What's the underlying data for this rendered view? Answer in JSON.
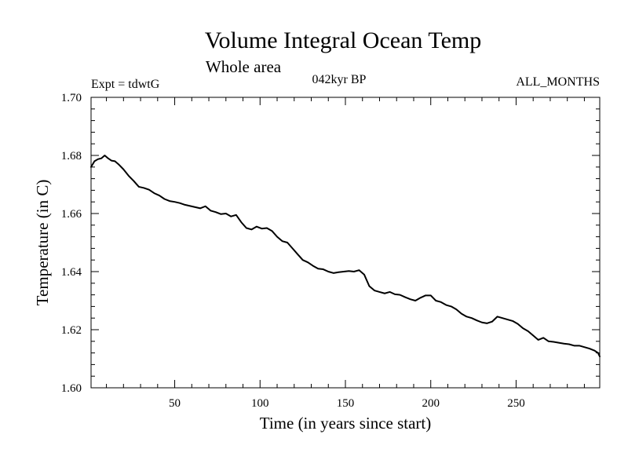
{
  "chart_data": {
    "type": "line",
    "title": "Volume Integral Ocean Temp",
    "subtitle": "Whole area",
    "annotation_left": "Expt = tdwtG",
    "annotation_center": "042kyr BP",
    "annotation_right": "ALL_MONTHS",
    "xlabel": "Time (in years since start)",
    "ylabel": "Temperature (in C)",
    "xlim": [
      1,
      299
    ],
    "ylim": [
      1.6,
      1.7
    ],
    "x_ticks": [
      50,
      100,
      150,
      200,
      250
    ],
    "x_tick_labels": [
      "50",
      "100",
      "150",
      "200",
      "250"
    ],
    "y_ticks": [
      1.6,
      1.62,
      1.64,
      1.66,
      1.68,
      1.7
    ],
    "y_tick_labels": [
      "1.60",
      "1.62",
      "1.64",
      "1.66",
      "1.68",
      "1.70"
    ],
    "grid": false,
    "series": [
      {
        "name": "Volume Integral Ocean Temp",
        "color": "#000000",
        "x": [
          1,
          3,
          5,
          7,
          9,
          11,
          13,
          15,
          17,
          20,
          23,
          26,
          29,
          32,
          35,
          38,
          41,
          44,
          47,
          50,
          53,
          56,
          59,
          62,
          65,
          68,
          71,
          74,
          77,
          80,
          83,
          86,
          89,
          92,
          95,
          98,
          101,
          104,
          107,
          110,
          113,
          116,
          119,
          122,
          125,
          128,
          131,
          134,
          137,
          140,
          143,
          146,
          149,
          152,
          155,
          158,
          161,
          164,
          167,
          170,
          173,
          176,
          179,
          182,
          185,
          188,
          191,
          194,
          197,
          200,
          203,
          206,
          209,
          212,
          215,
          218,
          221,
          224,
          227,
          230,
          233,
          236,
          239,
          242,
          245,
          248,
          251,
          254,
          257,
          260,
          263,
          266,
          269,
          272,
          275,
          278,
          281,
          284,
          287,
          290,
          293,
          296,
          298,
          299
        ],
        "values": [
          1.676,
          1.678,
          1.6787,
          1.679,
          1.68,
          1.679,
          1.6782,
          1.678,
          1.677,
          1.6752,
          1.673,
          1.6712,
          1.6692,
          1.6688,
          1.6682,
          1.667,
          1.6662,
          1.665,
          1.6643,
          1.664,
          1.6636,
          1.663,
          1.6626,
          1.6622,
          1.6618,
          1.6625,
          1.661,
          1.6605,
          1.6598,
          1.66,
          1.659,
          1.6595,
          1.657,
          1.655,
          1.6545,
          1.6555,
          1.6548,
          1.655,
          1.654,
          1.652,
          1.6505,
          1.65,
          1.648,
          1.646,
          1.644,
          1.6432,
          1.642,
          1.641,
          1.6408,
          1.64,
          1.6395,
          1.6398,
          1.64,
          1.6402,
          1.64,
          1.6405,
          1.639,
          1.635,
          1.6335,
          1.633,
          1.6325,
          1.633,
          1.6322,
          1.632,
          1.6312,
          1.6305,
          1.63,
          1.631,
          1.6318,
          1.6318,
          1.63,
          1.6295,
          1.6285,
          1.628,
          1.627,
          1.6255,
          1.6245,
          1.624,
          1.6232,
          1.6225,
          1.6222,
          1.6228,
          1.6245,
          1.624,
          1.6235,
          1.623,
          1.622,
          1.6205,
          1.6195,
          1.618,
          1.6165,
          1.6172,
          1.616,
          1.6158,
          1.6155,
          1.6152,
          1.615,
          1.6145,
          1.6145,
          1.614,
          1.6135,
          1.6128,
          1.612,
          1.6108
        ]
      }
    ]
  }
}
